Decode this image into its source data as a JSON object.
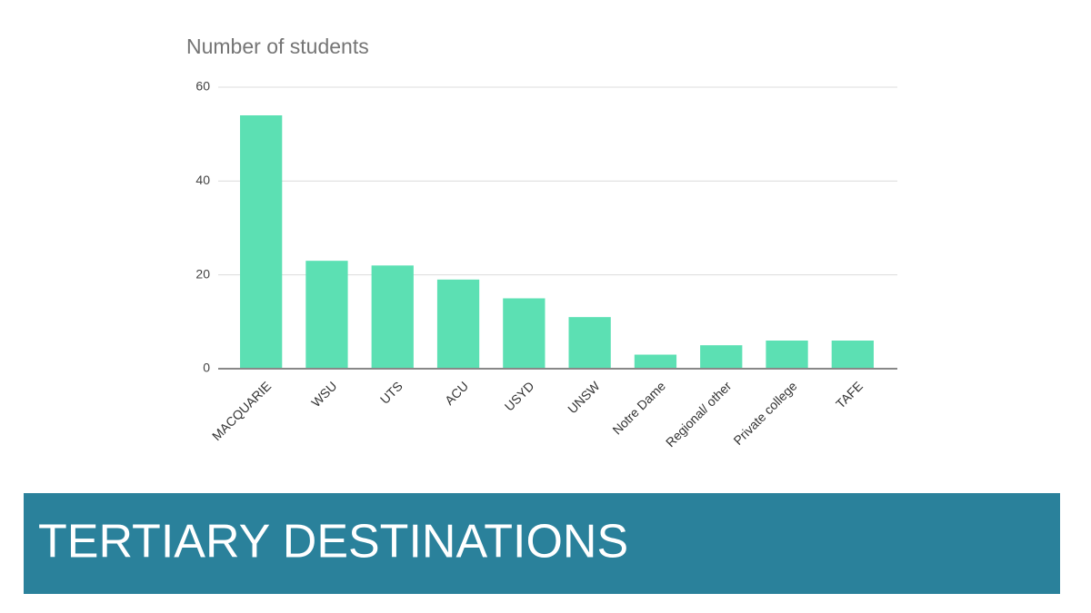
{
  "chart_data": {
    "type": "bar",
    "title": "Number of students",
    "categories": [
      "MACQUARIE",
      "WSU",
      "UTS",
      "ACU",
      "USYD",
      "UNSW",
      "Notre Dame",
      "Regional/ other",
      "Private college",
      "TAFE"
    ],
    "values": [
      54,
      23,
      22,
      19,
      15,
      11,
      3,
      5,
      6,
      6
    ],
    "color": "#5ce0b3",
    "ylim": [
      0,
      60
    ],
    "yticks": [
      0,
      20,
      40,
      60
    ],
    "grid": true
  },
  "banner": {
    "title": "TERTIARY DESTINATIONS"
  }
}
